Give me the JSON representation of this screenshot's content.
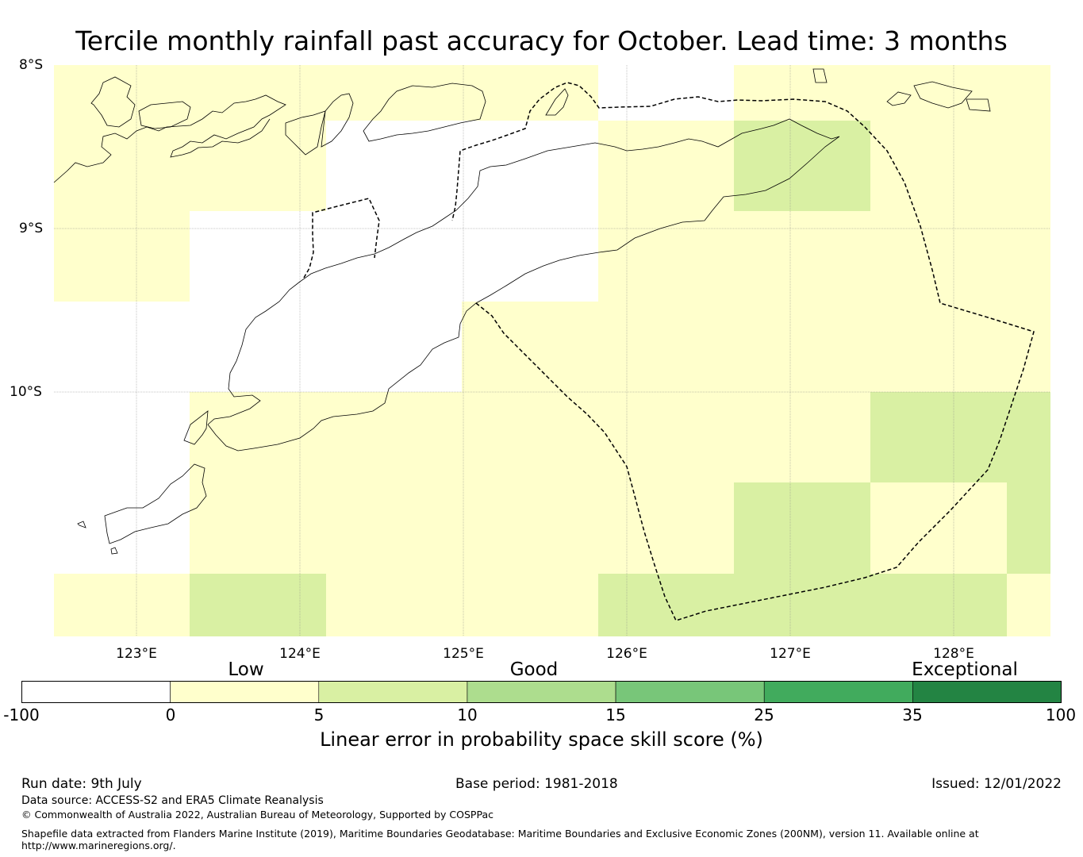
{
  "title": "Tercile monthly rainfall past accuracy for October. Lead time: 3 months",
  "map": {
    "lat_labels": [
      "8°S",
      "9°S",
      "10°S"
    ],
    "lon_labels": [
      "123°E",
      "124°E",
      "125°E",
      "126°E",
      "127°E",
      "128°E"
    ],
    "lon_range": [
      122.5,
      128.6
    ],
    "lat_range": [
      -8.0,
      -11.5
    ],
    "colors": {
      "below_0": "#ffffff",
      "0_5": "#ffffcc",
      "5_10": "#d9f0a3",
      "10_15": "#addd8e",
      "15_25": "#78c679",
      "25_35": "#41ab5d",
      "35_100": "#238443"
    },
    "features": [
      "coastline",
      "maritime-boundary-eez"
    ]
  },
  "colorbar": {
    "categories": [
      "Low",
      "Good",
      "Exceptional"
    ],
    "ticks": [
      "-100",
      "0",
      "5",
      "10",
      "15",
      "25",
      "35",
      "100"
    ],
    "label": "Linear error in probability space skill score (%)"
  },
  "footer": {
    "run_date": "Run date: 9th July",
    "base_period": "Base period: 1981-2018",
    "issued": "Issued: 12/01/2022",
    "data_source": "Data source: ACCESS-S2 and ERA5 Climate Reanalysis",
    "copyright": "© Commonwealth of Australia 2022, Australian Bureau of Meteorology, Supported by COSPPac",
    "shapefile_line1": "Shapefile data extracted from Flanders Marine Institute (2019), Maritime Boundaries Geodatabase: Maritime Boundaries and Exclusive Economic Zones (200NM), version 11. Available online at",
    "shapefile_line2": "http://www.marineregions.org/."
  }
}
